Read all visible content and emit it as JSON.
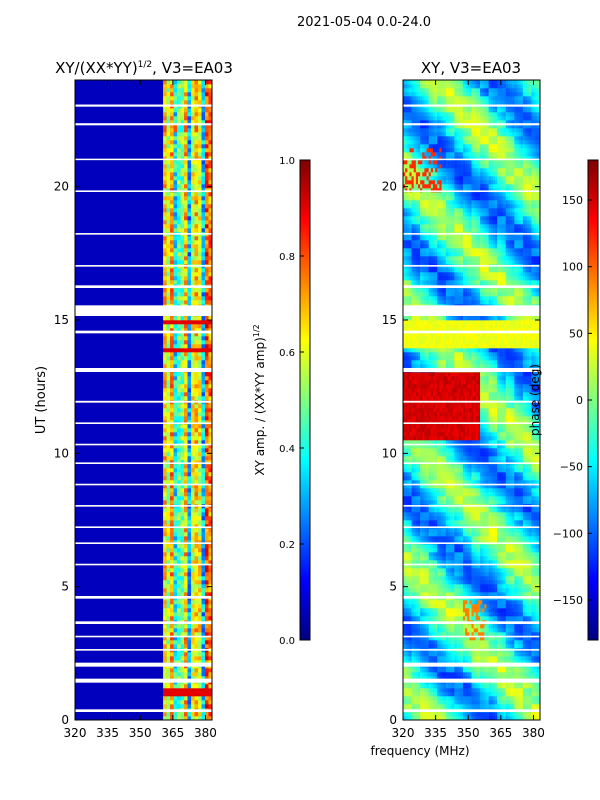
{
  "figure": {
    "suptitle": "2021-05-04 0.0-24.0",
    "common_xlabel": "frequency (MHz)"
  },
  "chart_data": [
    {
      "type": "heatmap",
      "title": "XY/(XX*YY)^{1/2}, V3=EA03",
      "title_main": "XY/(XX*YY)",
      "title_exp": "1/2",
      "title_tail": ", V3=EA03",
      "xlabel": "",
      "ylabel": "UT (hours)",
      "xlim": [
        320,
        383
      ],
      "ylim": [
        0,
        24
      ],
      "xticks": [
        320,
        335,
        350,
        365,
        380
      ],
      "yticks": [
        0,
        5,
        10,
        15,
        20
      ],
      "colorbar": {
        "label": "XY amp. / (XX*YY amp)^{1/2}",
        "label_main": "XY amp. / (XX*YY amp)",
        "label_exp": "1/2",
        "range": [
          0.0,
          1.0
        ],
        "ticks": [
          "0.0",
          "0.2",
          "0.4",
          "0.6",
          "0.8",
          "1.0"
        ],
        "colormap": "jet"
      },
      "notes": "Low amplitude (~0.05) below ~360 MHz; high amplitude (0.4-0.95) in channels ~360-383 MHz; white gaps = flagged times"
    },
    {
      "type": "heatmap",
      "title": "XY, V3=EA03",
      "xlabel": "",
      "ylabel": "",
      "xlim": [
        320,
        383
      ],
      "ylim": [
        0,
        24
      ],
      "xticks": [
        320,
        335,
        350,
        365,
        380
      ],
      "yticks": [
        0,
        5,
        10,
        15,
        20
      ],
      "colorbar": {
        "label": "phase (deg)",
        "range": [
          -180,
          180
        ],
        "ticks": [
          "150",
          "100",
          "50",
          "0",
          "−50",
          "−100",
          "−150"
        ],
        "colormap": "jet"
      },
      "notes": "Phase mostly -100 to +50 deg; strong positive (~+150) block around 320-355 MHz, 10.5-13 UT; green band (~+40) near 14-15 UT"
    }
  ],
  "colors": {
    "jet": [
      "#00007f",
      "#0000ff",
      "#007fff",
      "#00ffff",
      "#7fff7f",
      "#ffff00",
      "#ff7f00",
      "#ff0000",
      "#7f0000"
    ]
  }
}
